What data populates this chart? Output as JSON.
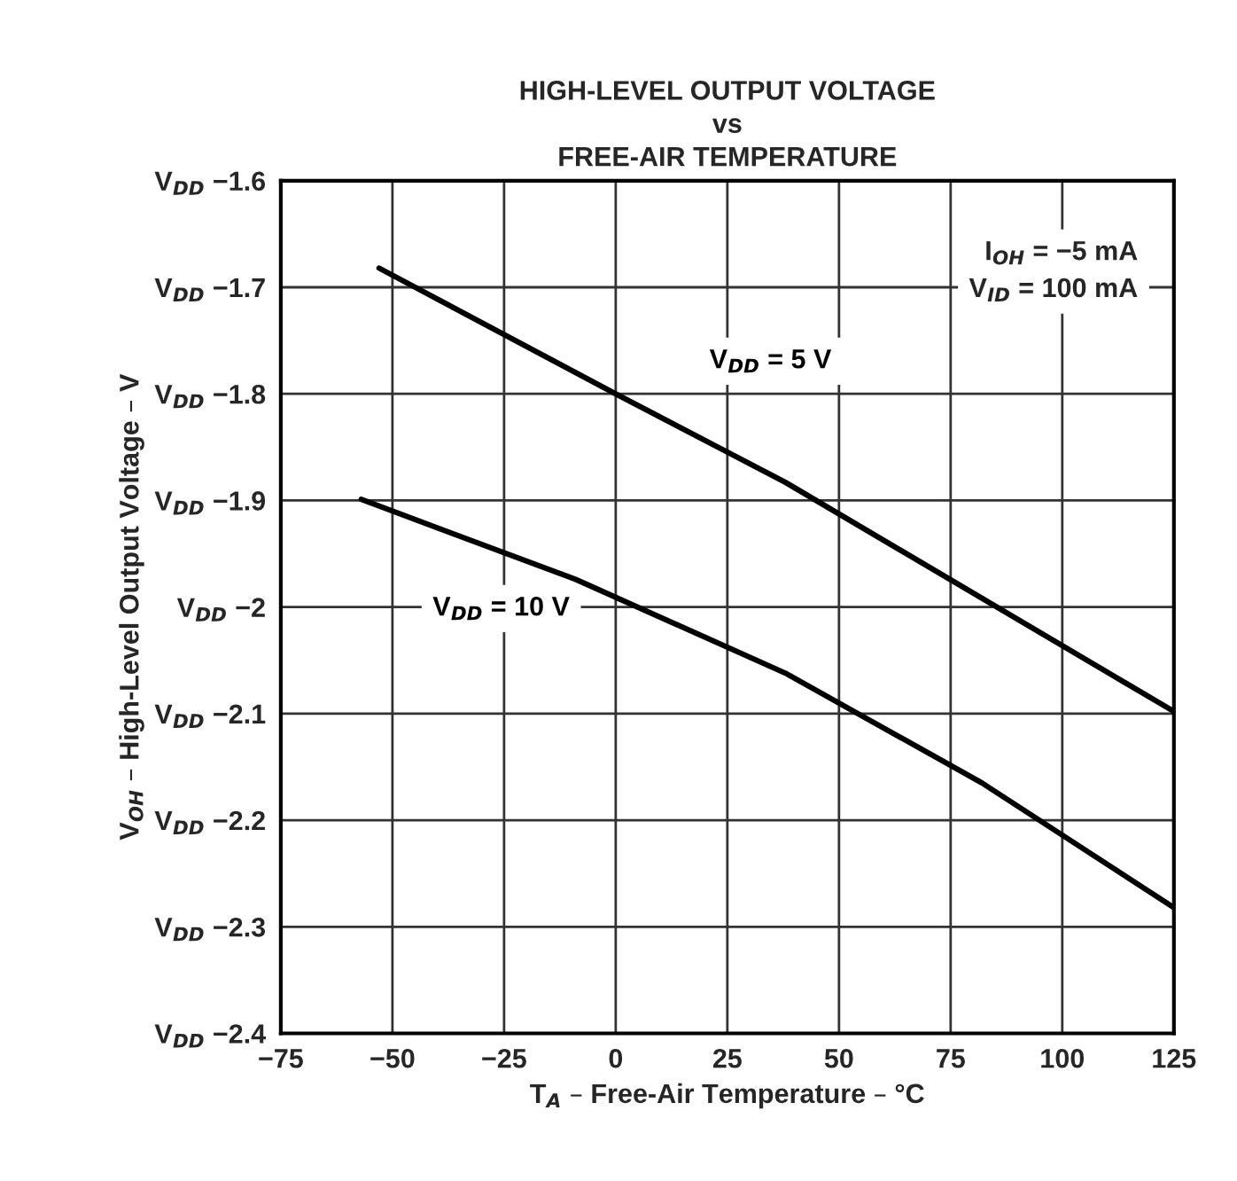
{
  "chart_data": {
    "type": "line",
    "title": "HIGH-LEVEL OUTPUT VOLTAGE\nvs\nFREE-AIR TEMPERATURE",
    "xlabel": "T$_{A}$ – Free-Air Temperature – °C",
    "ylabel": "V$_{OH}$ – High-Level Output Voltage – V",
    "series": [
      {
        "name": "V$_{DD}$ = 5 V",
        "color": "#000000",
        "x": [
          -53,
          0,
          38,
          125
        ],
        "values": [
          -1.682,
          -1.8,
          -1.883,
          -2.098
        ]
      },
      {
        "name": "V$_{DD}$ = 10 V",
        "color": "#000000",
        "x": [
          -57,
          -9,
          38,
          82,
          125
        ],
        "values": [
          -1.899,
          -1.974,
          -2.062,
          -2.165,
          -2.282
        ]
      }
    ],
    "xlim": [
      -75,
      125
    ],
    "xticks": [
      {
        "value": -75,
        "label": "−75"
      },
      {
        "value": -50,
        "label": "−50"
      },
      {
        "value": -25,
        "label": "−25"
      },
      0,
      25,
      50,
      75,
      100,
      125
    ],
    "ylim": [
      -2.4,
      -1.6
    ],
    "yticks": [
      {
        "value": -2.4,
        "label": "V$_{DD}$ −2.4"
      },
      {
        "value": -2.3,
        "label": "V$_{DD}$ −2.3"
      },
      {
        "value": -2.2,
        "label": "V$_{DD}$ −2.2"
      },
      {
        "value": -2.1,
        "label": "V$_{DD}$ −2.1"
      },
      {
        "value": -2.0,
        "label": "V$_{DD}$ −2"
      },
      {
        "value": -1.9,
        "label": "V$_{DD}$ −1.9"
      },
      {
        "value": -1.8,
        "label": "V$_{DD}$ −1.8"
      },
      {
        "value": -1.7,
        "label": "V$_{DD}$ −1.7"
      },
      {
        "value": -1.6,
        "label": "V$_{DD}$ −1.6"
      }
    ],
    "annotations": [
      "I$_{OH}$ = −5 mA\nV$_{ID}$ = 100 mA"
    ],
    "grid": true,
    "legend": false,
    "marker": "none",
    "line_style": "solid"
  }
}
